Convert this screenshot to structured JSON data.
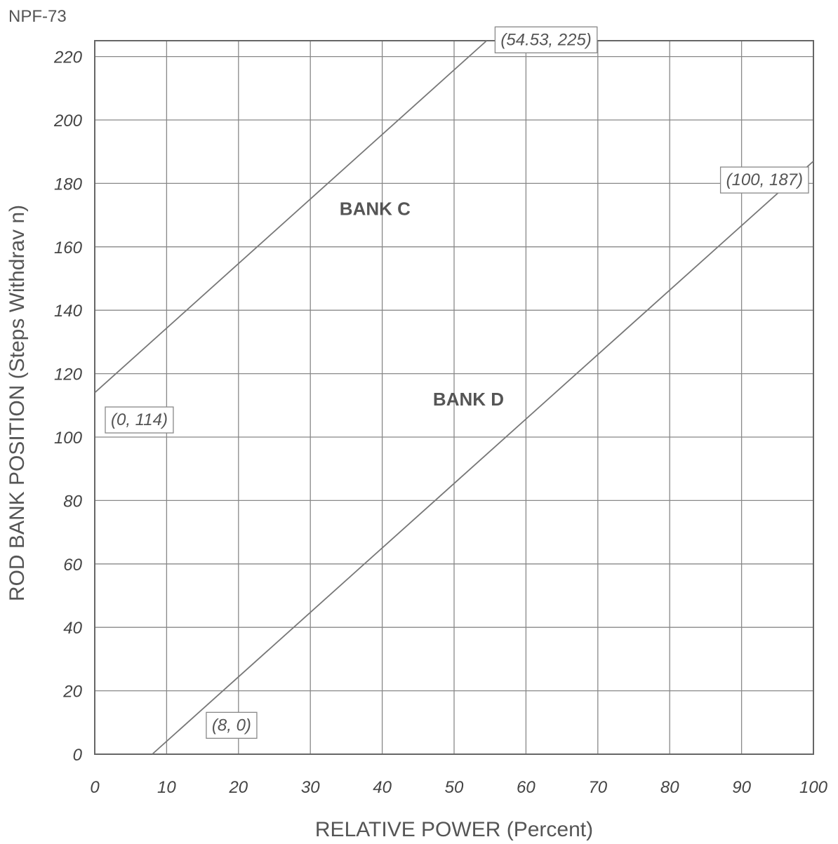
{
  "document_id": "NPF-73",
  "chart_data": {
    "type": "line",
    "title": "",
    "xlabel": "RELATIVE POWER (Percent)",
    "ylabel": "ROD BANK POSITION (Steps Withdrav n)",
    "xlim": [
      0,
      100
    ],
    "ylim": [
      0,
      225
    ],
    "x_ticks": [
      0,
      10,
      20,
      30,
      40,
      50,
      60,
      70,
      80,
      90,
      100
    ],
    "y_ticks": [
      0,
      20,
      40,
      60,
      80,
      100,
      120,
      140,
      160,
      180,
      200,
      220
    ],
    "grid": true,
    "series": [
      {
        "name": "BANK C",
        "x": [
          0,
          54.53
        ],
        "y": [
          114,
          225
        ],
        "label_at": [
          39,
          170
        ]
      },
      {
        "name": "BANK D",
        "x": [
          8,
          100
        ],
        "y": [
          0,
          187
        ],
        "label_at": [
          52,
          110
        ]
      }
    ],
    "annotations": [
      {
        "text": "(54.53, 225)",
        "x": 54.53,
        "y": 225
      },
      {
        "text": "(100, 187)",
        "x": 100,
        "y": 187
      },
      {
        "text": "(0, 114)",
        "x": 0,
        "y": 114
      },
      {
        "text": "(8, 0)",
        "x": 8,
        "y": 0
      }
    ]
  }
}
